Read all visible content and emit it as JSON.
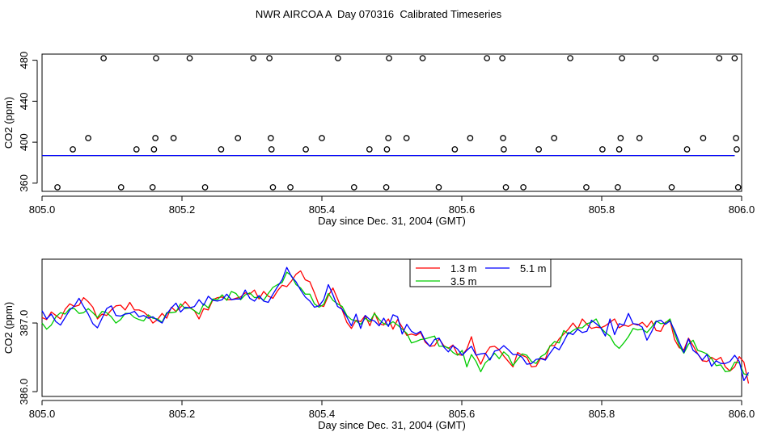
{
  "figure_title": "NWR AIRCOA A  Day 070316  Calibrated Timeseries",
  "chart_data": [
    {
      "type": "scatter",
      "title": "",
      "xlabel": "Day since Dec. 31, 2004 (GMT)",
      "ylabel": "CO2 (ppm)",
      "xlim": [
        805.0,
        806.0
      ],
      "ylim": [
        352,
        486
      ],
      "xticks": [
        805.0,
        805.2,
        805.4,
        805.6,
        805.8,
        806.0
      ],
      "xtick_labels": [
        "805.0",
        "805.2",
        "805.4",
        "805.6",
        "805.8",
        "806.0"
      ],
      "yticks": [
        360,
        400,
        440,
        480
      ],
      "ytick_labels": [
        "360",
        "400",
        "440",
        "480"
      ],
      "calibration_points": [
        {
          "x": 805.022,
          "y": 356
        },
        {
          "x": 805.044,
          "y": 393
        },
        {
          "x": 805.066,
          "y": 404
        },
        {
          "x": 805.088,
          "y": 482
        },
        {
          "x": 805.113,
          "y": 356
        },
        {
          "x": 805.135,
          "y": 393
        },
        {
          "x": 805.158,
          "y": 356
        },
        {
          "x": 805.16,
          "y": 393
        },
        {
          "x": 805.162,
          "y": 404
        },
        {
          "x": 805.163,
          "y": 482
        },
        {
          "x": 805.188,
          "y": 404
        },
        {
          "x": 805.211,
          "y": 482
        },
        {
          "x": 805.233,
          "y": 356
        },
        {
          "x": 805.256,
          "y": 393
        },
        {
          "x": 805.28,
          "y": 404
        },
        {
          "x": 805.302,
          "y": 482
        },
        {
          "x": 805.325,
          "y": 482
        },
        {
          "x": 805.327,
          "y": 404
        },
        {
          "x": 805.328,
          "y": 393
        },
        {
          "x": 805.33,
          "y": 356
        },
        {
          "x": 805.355,
          "y": 356
        },
        {
          "x": 805.377,
          "y": 393
        },
        {
          "x": 805.4,
          "y": 404
        },
        {
          "x": 805.423,
          "y": 482
        },
        {
          "x": 805.446,
          "y": 356
        },
        {
          "x": 805.468,
          "y": 393
        },
        {
          "x": 805.492,
          "y": 356
        },
        {
          "x": 805.493,
          "y": 393
        },
        {
          "x": 805.495,
          "y": 404
        },
        {
          "x": 805.496,
          "y": 482
        },
        {
          "x": 805.521,
          "y": 404
        },
        {
          "x": 805.544,
          "y": 482
        },
        {
          "x": 805.567,
          "y": 356
        },
        {
          "x": 805.59,
          "y": 393
        },
        {
          "x": 805.612,
          "y": 404
        },
        {
          "x": 805.636,
          "y": 482
        },
        {
          "x": 805.658,
          "y": 482
        },
        {
          "x": 805.659,
          "y": 404
        },
        {
          "x": 805.66,
          "y": 393
        },
        {
          "x": 805.663,
          "y": 356
        },
        {
          "x": 805.688,
          "y": 356
        },
        {
          "x": 805.71,
          "y": 393
        },
        {
          "x": 805.732,
          "y": 404
        },
        {
          "x": 805.755,
          "y": 482
        },
        {
          "x": 805.778,
          "y": 356
        },
        {
          "x": 805.801,
          "y": 393
        },
        {
          "x": 805.823,
          "y": 356
        },
        {
          "x": 805.825,
          "y": 393
        },
        {
          "x": 805.827,
          "y": 404
        },
        {
          "x": 805.829,
          "y": 482
        },
        {
          "x": 805.854,
          "y": 404
        },
        {
          "x": 805.877,
          "y": 482
        },
        {
          "x": 805.9,
          "y": 356
        },
        {
          "x": 805.922,
          "y": 393
        },
        {
          "x": 805.945,
          "y": 404
        },
        {
          "x": 805.968,
          "y": 482
        },
        {
          "x": 805.99,
          "y": 482
        },
        {
          "x": 805.992,
          "y": 404
        },
        {
          "x": 805.993,
          "y": 393
        },
        {
          "x": 805.995,
          "y": 356
        }
      ],
      "baseline_series": [
        {
          "name": "1.3 m",
          "color": "#ff0000",
          "x": [
            805.0,
            805.99
          ],
          "y": [
            387,
            387
          ]
        },
        {
          "name": "3.5 m",
          "color": "#00cc00",
          "x": [
            805.0,
            805.99
          ],
          "y": [
            387,
            387
          ]
        },
        {
          "name": "5.1 m",
          "color": "#0000ff",
          "x": [
            805.0,
            805.99
          ],
          "y": [
            387,
            387
          ]
        }
      ]
    },
    {
      "type": "line",
      "title": "",
      "xlabel": "Day since Dec. 31, 2004 (GMT)",
      "ylabel": "CO2 (ppm)",
      "xlim": [
        805.0,
        806.0
      ],
      "ylim": [
        385.93,
        387.93
      ],
      "xticks": [
        805.0,
        805.2,
        805.4,
        805.6,
        805.8,
        806.0
      ],
      "xtick_labels": [
        "805.0",
        "805.2",
        "805.4",
        "805.6",
        "805.8",
        "806.0"
      ],
      "yticks": [
        386.0,
        387.0
      ],
      "ytick_labels": [
        "386.0",
        "387.0"
      ],
      "x_start": 805.0,
      "x_step": 0.0066,
      "legend": {
        "placement": "top-center",
        "entries": [
          {
            "label": "1.3 m",
            "color": "#ff0000"
          },
          {
            "label": "5.1 m",
            "color": "#0000ff"
          },
          {
            "label": "3.5 m",
            "color": "#00cc00"
          }
        ]
      },
      "series": [
        {
          "name": "1.3 m",
          "color": "#ff0000",
          "values": [
            387.08,
            387.05,
            387.16,
            387.11,
            387.06,
            387.2,
            387.28,
            387.24,
            387.26,
            387.37,
            387.31,
            387.23,
            387.06,
            387.13,
            387.11,
            387.19,
            387.25,
            387.26,
            387.19,
            387.3,
            387.19,
            387.19,
            387.16,
            387.1,
            387.0,
            387.05,
            387.14,
            387.07,
            387.23,
            387.17,
            387.23,
            387.31,
            387.23,
            387.18,
            387.06,
            387.21,
            387.19,
            387.34,
            387.37,
            387.38,
            387.34,
            387.34,
            387.36,
            387.38,
            387.44,
            387.42,
            387.48,
            387.35,
            387.46,
            387.39,
            387.36,
            387.47,
            387.55,
            387.53,
            387.61,
            387.71,
            387.76,
            387.63,
            387.6,
            387.44,
            387.26,
            387.24,
            387.4,
            387.51,
            387.35,
            387.19,
            387.01,
            386.92,
            387.04,
            387.02,
            387.11,
            386.96,
            387.15,
            386.99,
            386.97,
            387.06,
            386.91,
            387.05,
            386.94,
            386.82,
            386.84,
            386.82,
            386.86,
            386.72,
            386.66,
            386.67,
            386.77,
            386.67,
            386.63,
            386.68,
            386.54,
            386.53,
            386.62,
            386.8,
            386.54,
            386.4,
            386.55,
            386.65,
            386.66,
            386.61,
            386.52,
            386.44,
            386.36,
            386.57,
            386.53,
            386.5,
            386.36,
            386.37,
            386.49,
            386.47,
            386.67,
            386.67,
            386.77,
            386.84,
            386.91,
            387.0,
            386.91,
            387.06,
            386.98,
            386.92,
            386.94,
            386.93,
            386.96,
            387.01,
            387.06,
            386.93,
            386.97,
            386.95,
            386.99,
            386.97,
            387.01,
            386.94,
            387.03,
            386.89,
            386.88,
            387.01,
            387.04,
            386.76,
            386.64,
            386.61,
            386.78,
            386.67,
            386.55,
            386.45,
            386.44,
            386.5,
            386.46,
            386.5,
            386.36,
            386.3,
            386.36,
            386.51,
            386.43,
            386.12
          ]
        },
        {
          "name": "3.5 m",
          "color": "#00cc00",
          "values": [
            387.0,
            386.91,
            386.97,
            387.09,
            387.15,
            387.13,
            387.21,
            387.21,
            387.14,
            387.15,
            387.21,
            387.15,
            387.08,
            387.17,
            387.15,
            387.09,
            387.0,
            387.05,
            387.14,
            387.14,
            387.08,
            387.05,
            387.03,
            387.12,
            387.07,
            387.06,
            387.01,
            387.15,
            387.15,
            387.16,
            387.28,
            387.21,
            387.22,
            387.18,
            387.13,
            387.28,
            387.22,
            387.35,
            387.34,
            387.41,
            387.33,
            387.46,
            387.43,
            387.34,
            387.41,
            387.44,
            387.37,
            387.38,
            387.33,
            387.43,
            387.52,
            387.56,
            387.59,
            387.74,
            387.69,
            387.56,
            387.51,
            387.42,
            387.42,
            387.28,
            387.23,
            387.27,
            387.43,
            387.33,
            387.28,
            387.24,
            387.11,
            387.05,
            387.03,
            386.98,
            387.07,
            387.02,
            387.14,
            387.05,
            386.99,
            386.97,
            387.02,
            386.97,
            386.91,
            386.85,
            386.71,
            386.73,
            386.76,
            386.77,
            386.79,
            386.81,
            386.66,
            386.66,
            386.64,
            386.57,
            386.53,
            386.6,
            386.36,
            386.54,
            386.44,
            386.29,
            386.42,
            386.48,
            386.56,
            386.48,
            386.58,
            386.52,
            386.38,
            386.47,
            386.55,
            386.53,
            386.44,
            386.41,
            386.51,
            386.55,
            386.66,
            386.73,
            386.71,
            386.89,
            386.84,
            386.89,
            386.93,
            386.93,
            386.99,
            387.01,
            387.06,
            386.93,
            386.86,
            386.81,
            386.69,
            386.63,
            386.71,
            386.8,
            386.92,
            386.9,
            386.91,
            386.86,
            386.94,
            387.03,
            386.99,
            387.0,
            387.06,
            386.85,
            386.67,
            386.56,
            386.69,
            386.75,
            386.6,
            386.58,
            386.55,
            386.48,
            386.38,
            386.39,
            386.29,
            386.3,
            386.43,
            386.42,
            386.26,
            386.24
          ]
        },
        {
          "name": "5.1 m",
          "color": "#0000ff",
          "values": [
            387.18,
            387.06,
            387.13,
            387.02,
            386.97,
            387.08,
            387.19,
            387.25,
            387.36,
            387.24,
            387.13,
            386.99,
            386.93,
            387.07,
            387.21,
            387.25,
            387.11,
            387.1,
            387.13,
            387.14,
            387.17,
            387.09,
            387.11,
            387.07,
            387.09,
            387.04,
            387.0,
            387.13,
            387.22,
            387.29,
            387.16,
            387.23,
            387.22,
            387.24,
            387.34,
            387.26,
            387.39,
            387.33,
            387.32,
            387.34,
            387.42,
            387.34,
            387.35,
            387.35,
            387.48,
            387.36,
            387.32,
            387.4,
            387.32,
            387.3,
            387.42,
            387.53,
            387.63,
            387.81,
            387.68,
            387.6,
            387.48,
            387.38,
            387.32,
            387.23,
            387.25,
            387.34,
            387.56,
            387.41,
            387.24,
            387.2,
            387.09,
            386.96,
            387.13,
            386.92,
            387.11,
            387.05,
            387.03,
            386.96,
            387.07,
            386.95,
            387.12,
            387.09,
            386.84,
            386.98,
            386.88,
            386.84,
            386.88,
            386.74,
            386.66,
            386.76,
            386.78,
            386.65,
            386.58,
            386.67,
            386.62,
            386.53,
            386.6,
            386.66,
            386.53,
            386.55,
            386.56,
            386.46,
            386.59,
            386.61,
            386.67,
            386.61,
            386.54,
            386.54,
            386.5,
            386.4,
            386.41,
            386.47,
            386.48,
            386.46,
            386.56,
            386.65,
            386.61,
            386.73,
            386.86,
            386.83,
            386.91,
            386.86,
            386.88,
            387.04,
            386.99,
            386.93,
            386.81,
            387.06,
            386.83,
            386.99,
            386.97,
            387.14,
            386.99,
            386.98,
            386.94,
            386.75,
            386.87,
            387.02,
            387.04,
            386.98,
            387.03,
            386.89,
            386.72,
            386.57,
            386.77,
            386.6,
            386.55,
            386.46,
            386.54,
            386.37,
            386.45,
            386.41,
            386.41,
            386.44,
            386.53,
            386.44,
            386.16,
            386.28
          ]
        }
      ]
    }
  ]
}
